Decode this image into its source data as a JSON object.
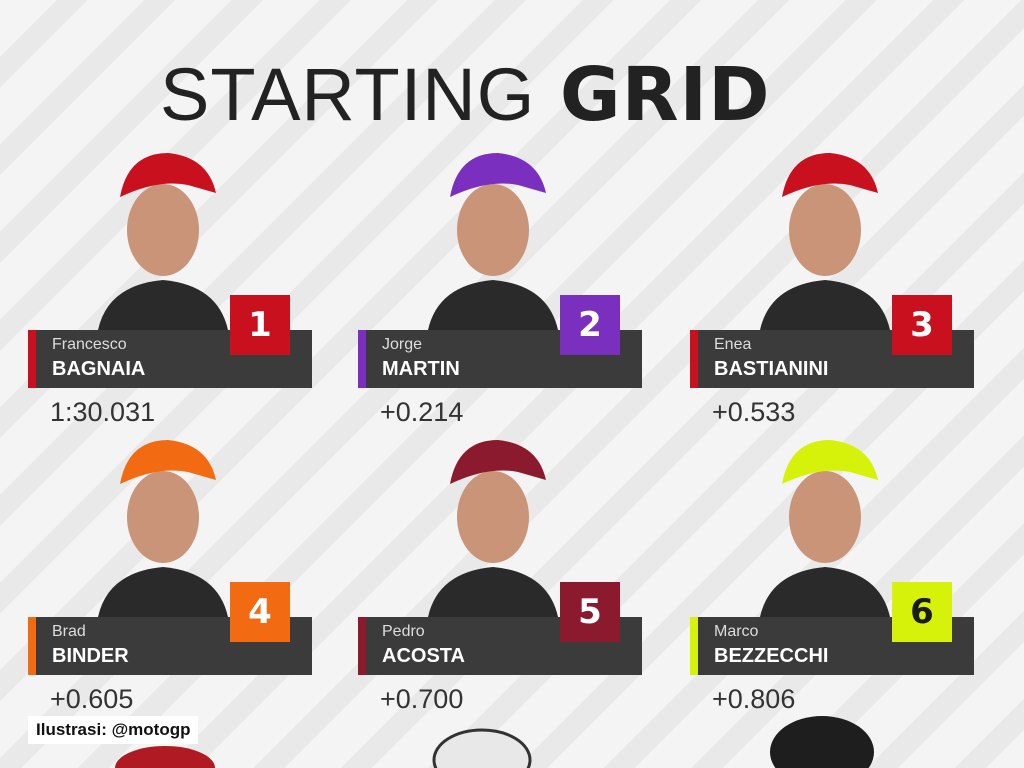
{
  "header": {
    "title_light": "STARTING",
    "title_bold": "GRID"
  },
  "riders": [
    {
      "position": 1,
      "first_name": "Francesco",
      "last_name": "BAGNAIA",
      "time": "1:30.031",
      "color": "#c8101e",
      "text_color": "#ffffff"
    },
    {
      "position": 2,
      "first_name": "Jorge",
      "last_name": "MARTIN",
      "time": "+0.214",
      "color": "#7a2fbf",
      "text_color": "#ffffff"
    },
    {
      "position": 3,
      "first_name": "Enea",
      "last_name": "BASTIANINI",
      "time": "+0.533",
      "color": "#c8101e",
      "text_color": "#ffffff"
    },
    {
      "position": 4,
      "first_name": "Brad",
      "last_name": "BINDER",
      "time": "+0.605",
      "color": "#f26a12",
      "text_color": "#ffffff"
    },
    {
      "position": 5,
      "first_name": "Pedro",
      "last_name": "ACOSTA",
      "time": "+0.700",
      "color": "#8c1a2e",
      "text_color": "#ffffff"
    },
    {
      "position": 6,
      "first_name": "Marco",
      "last_name": "BEZZECCHI",
      "time": "+0.806",
      "color": "#d6f20a",
      "text_color": "#1a1a1a"
    }
  ],
  "caption": "Ilustrasi: @motogp"
}
